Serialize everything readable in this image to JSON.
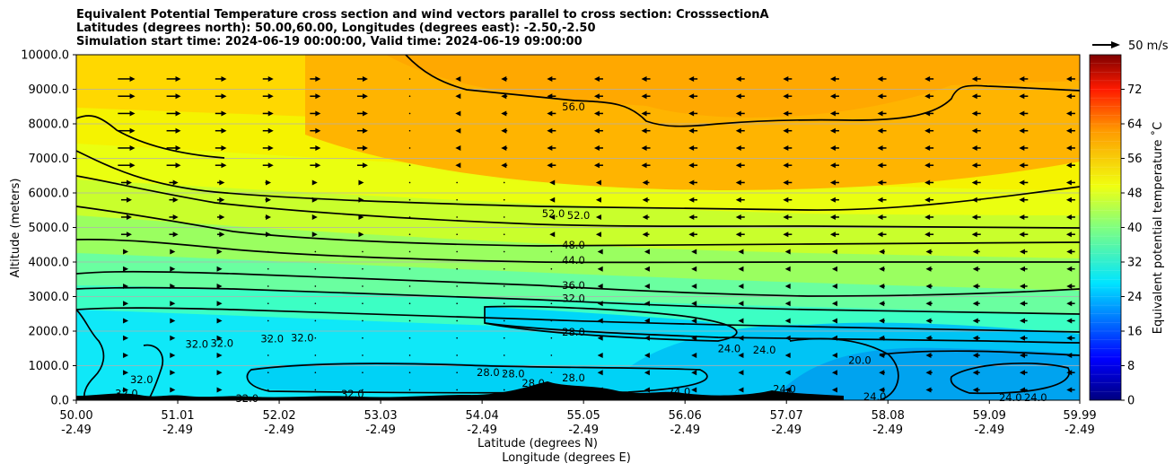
{
  "chart_data": {
    "type": "heatmap",
    "title_lines": [
      "Equivalent Potential Temperature cross section and wind vectors parallel to cross section: CrosssectionA",
      "Latitudes (degrees north): 50.00,60.00, Longitudes (degrees east): -2.50,-2.50",
      "Simulation start time: 2024-06-19 00:00:00, Valid time: 2024-06-19 09:00:00"
    ],
    "ylabel": "Altitude (meters)",
    "xlabel": "Latitude (degrees N)",
    "xlabel2": "Longitude (degrees E)",
    "ylim": [
      0,
      10000
    ],
    "xlim": [
      50.0,
      59.99
    ],
    "y_ticks": [
      "0.0",
      "1000.0",
      "2000.0",
      "3000.0",
      "4000.0",
      "5000.0",
      "6000.0",
      "7000.0",
      "8000.0",
      "9000.0",
      "10000.0"
    ],
    "x_ticks": [
      {
        "lat": "50.00",
        "lon": "-2.49"
      },
      {
        "lat": "51.01",
        "lon": "-2.49"
      },
      {
        "lat": "52.02",
        "lon": "-2.49"
      },
      {
        "lat": "53.03",
        "lon": "-2.49"
      },
      {
        "lat": "54.04",
        "lon": "-2.49"
      },
      {
        "lat": "55.05",
        "lon": "-2.49"
      },
      {
        "lat": "56.06",
        "lon": "-2.49"
      },
      {
        "lat": "57.07",
        "lon": "-2.49"
      },
      {
        "lat": "58.08",
        "lon": "-2.49"
      },
      {
        "lat": "59.09",
        "lon": "-2.49"
      },
      {
        "lat": "59.99",
        "lon": "-2.49"
      }
    ],
    "colorbar": {
      "label": "Equivalent potential temperature ˚C",
      "range": [
        0,
        80
      ],
      "ticks": [
        "0",
        "8",
        "16",
        "24",
        "32",
        "40",
        "48",
        "56",
        "64",
        "72"
      ]
    },
    "quiver_key": "50 m/s",
    "contour_labels": [
      {
        "text": "56.0",
        "x": 54.95,
        "y": 8500
      },
      {
        "text": "52.0",
        "x": 54.75,
        "y": 5400
      },
      {
        "text": "52.0",
        "x": 55.0,
        "y": 5350
      },
      {
        "text": "48.0",
        "x": 54.95,
        "y": 4500
      },
      {
        "text": "44.0",
        "x": 54.95,
        "y": 4050
      },
      {
        "text": "36.0",
        "x": 54.95,
        "y": 3330
      },
      {
        "text": "32.0",
        "x": 54.95,
        "y": 2950
      },
      {
        "text": "28.0",
        "x": 54.95,
        "y": 1980
      },
      {
        "text": "32.0",
        "x": 51.2,
        "y": 1620
      },
      {
        "text": "32.0",
        "x": 51.45,
        "y": 1650
      },
      {
        "text": "32.0",
        "x": 51.95,
        "y": 1780
      },
      {
        "text": "32.0",
        "x": 52.25,
        "y": 1800
      },
      {
        "text": "32.0",
        "x": 50.65,
        "y": 600
      },
      {
        "text": "32.0",
        "x": 50.5,
        "y": 200
      },
      {
        "text": "32.0",
        "x": 51.7,
        "y": 50
      },
      {
        "text": "32.0",
        "x": 52.75,
        "y": 180
      },
      {
        "text": "28.0",
        "x": 54.1,
        "y": 800
      },
      {
        "text": "28.0",
        "x": 54.35,
        "y": 770
      },
      {
        "text": "28.0",
        "x": 54.55,
        "y": 500
      },
      {
        "text": "28.0",
        "x": 54.95,
        "y": 650
      },
      {
        "text": "24.0",
        "x": 56.5,
        "y": 1500
      },
      {
        "text": "24.0",
        "x": 56.85,
        "y": 1450
      },
      {
        "text": "24.0",
        "x": 56.0,
        "y": 250
      },
      {
        "text": "24.0",
        "x": 57.05,
        "y": 320
      },
      {
        "text": "20.0",
        "x": 57.8,
        "y": 1150
      },
      {
        "text": "24.0",
        "x": 57.95,
        "y": 100
      },
      {
        "text": "24.0",
        "x": 59.3,
        "y": 80
      },
      {
        "text": "24.0",
        "x": 59.55,
        "y": 80
      }
    ]
  }
}
